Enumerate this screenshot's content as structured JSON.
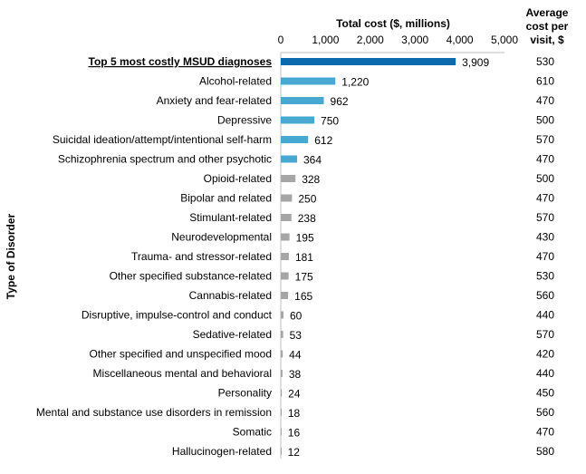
{
  "chart_data": {
    "type": "bar",
    "orientation": "horizontal",
    "xlabel": "Total cost ($, millions)",
    "ylabel": "Type of Disorder",
    "right_column_header": [
      "Average",
      "cost per",
      "visit, $"
    ],
    "xlim": [
      0,
      5000
    ],
    "xticks": [
      0,
      1000,
      2000,
      3000,
      4000,
      5000
    ],
    "xtick_labels": [
      "0",
      "1,000",
      "2,000",
      "3,000",
      "4,000",
      "5,000"
    ],
    "grid": false,
    "colors": {
      "total": "#0a6aad",
      "top5": "#47a9d1",
      "other": "#a6a6a6"
    },
    "categories": [
      "Top 5 most costly MSUD diagnoses",
      "Alcohol-related",
      "Anxiety and fear-related",
      "Depressive",
      "Suicidal ideation/attempt/intentional self-harm",
      "Schizophrenia spectrum and other psychotic",
      "Opioid-related",
      "Bipolar and related",
      "Stimulant-related",
      "Neurodevelopmental",
      "Trauma- and stressor-related",
      "Other specified substance-related",
      "Cannabis-related",
      "Disruptive, impulse-control and conduct",
      "Sedative-related",
      "Other specified and unspecified mood",
      "Miscellaneous mental and behavioral",
      "Personality",
      "Mental and substance use disorders in remission",
      "Somatic",
      "Hallucinogen-related"
    ],
    "values": [
      3909,
      1220,
      962,
      750,
      612,
      364,
      328,
      250,
      238,
      195,
      181,
      175,
      165,
      60,
      53,
      44,
      38,
      24,
      18,
      16,
      12
    ],
    "value_labels": [
      "3,909",
      "1,220",
      "962",
      "750",
      "612",
      "364",
      "328",
      "250",
      "238",
      "195",
      "181",
      "175",
      "165",
      "60",
      "53",
      "44",
      "38",
      "24",
      "18",
      "16",
      "12"
    ],
    "avg_cost_per_visit": [
      530,
      610,
      470,
      500,
      570,
      470,
      500,
      470,
      570,
      430,
      470,
      530,
      560,
      440,
      570,
      420,
      440,
      450,
      560,
      470,
      580
    ],
    "color_groups": [
      "total",
      "top5",
      "top5",
      "top5",
      "top5",
      "top5",
      "other",
      "other",
      "other",
      "other",
      "other",
      "other",
      "other",
      "other",
      "other",
      "other",
      "other",
      "other",
      "other",
      "other",
      "other"
    ]
  }
}
